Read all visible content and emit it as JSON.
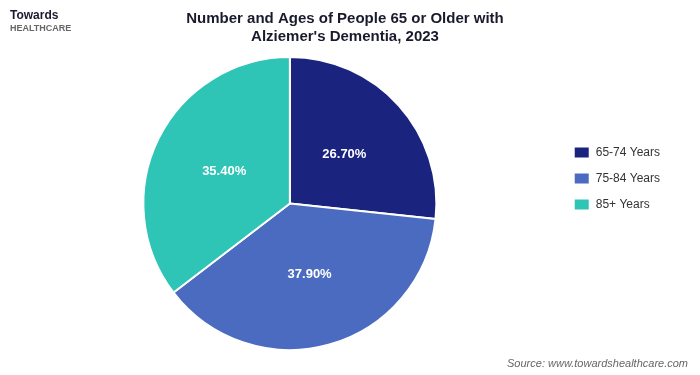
{
  "chart_data": {
    "type": "pie",
    "title": "Number and Ages of People 65 or Older with\nAlziemer's Dementia, 2023",
    "categories": [
      "65-74 Years",
      "75-84 Years",
      "85+ Years"
    ],
    "values": [
      26.7,
      37.9,
      35.4
    ],
    "value_labels": [
      "26.70%",
      "37.90%",
      "35.40%"
    ],
    "colors": [
      "#1a237e",
      "#4a6bbf",
      "#2ec4b6"
    ],
    "data_labels": true,
    "legend": "right",
    "annotations": [
      "Towards",
      "HEALTHCARE",
      "Source: www.towardshealthcare.com"
    ]
  }
}
